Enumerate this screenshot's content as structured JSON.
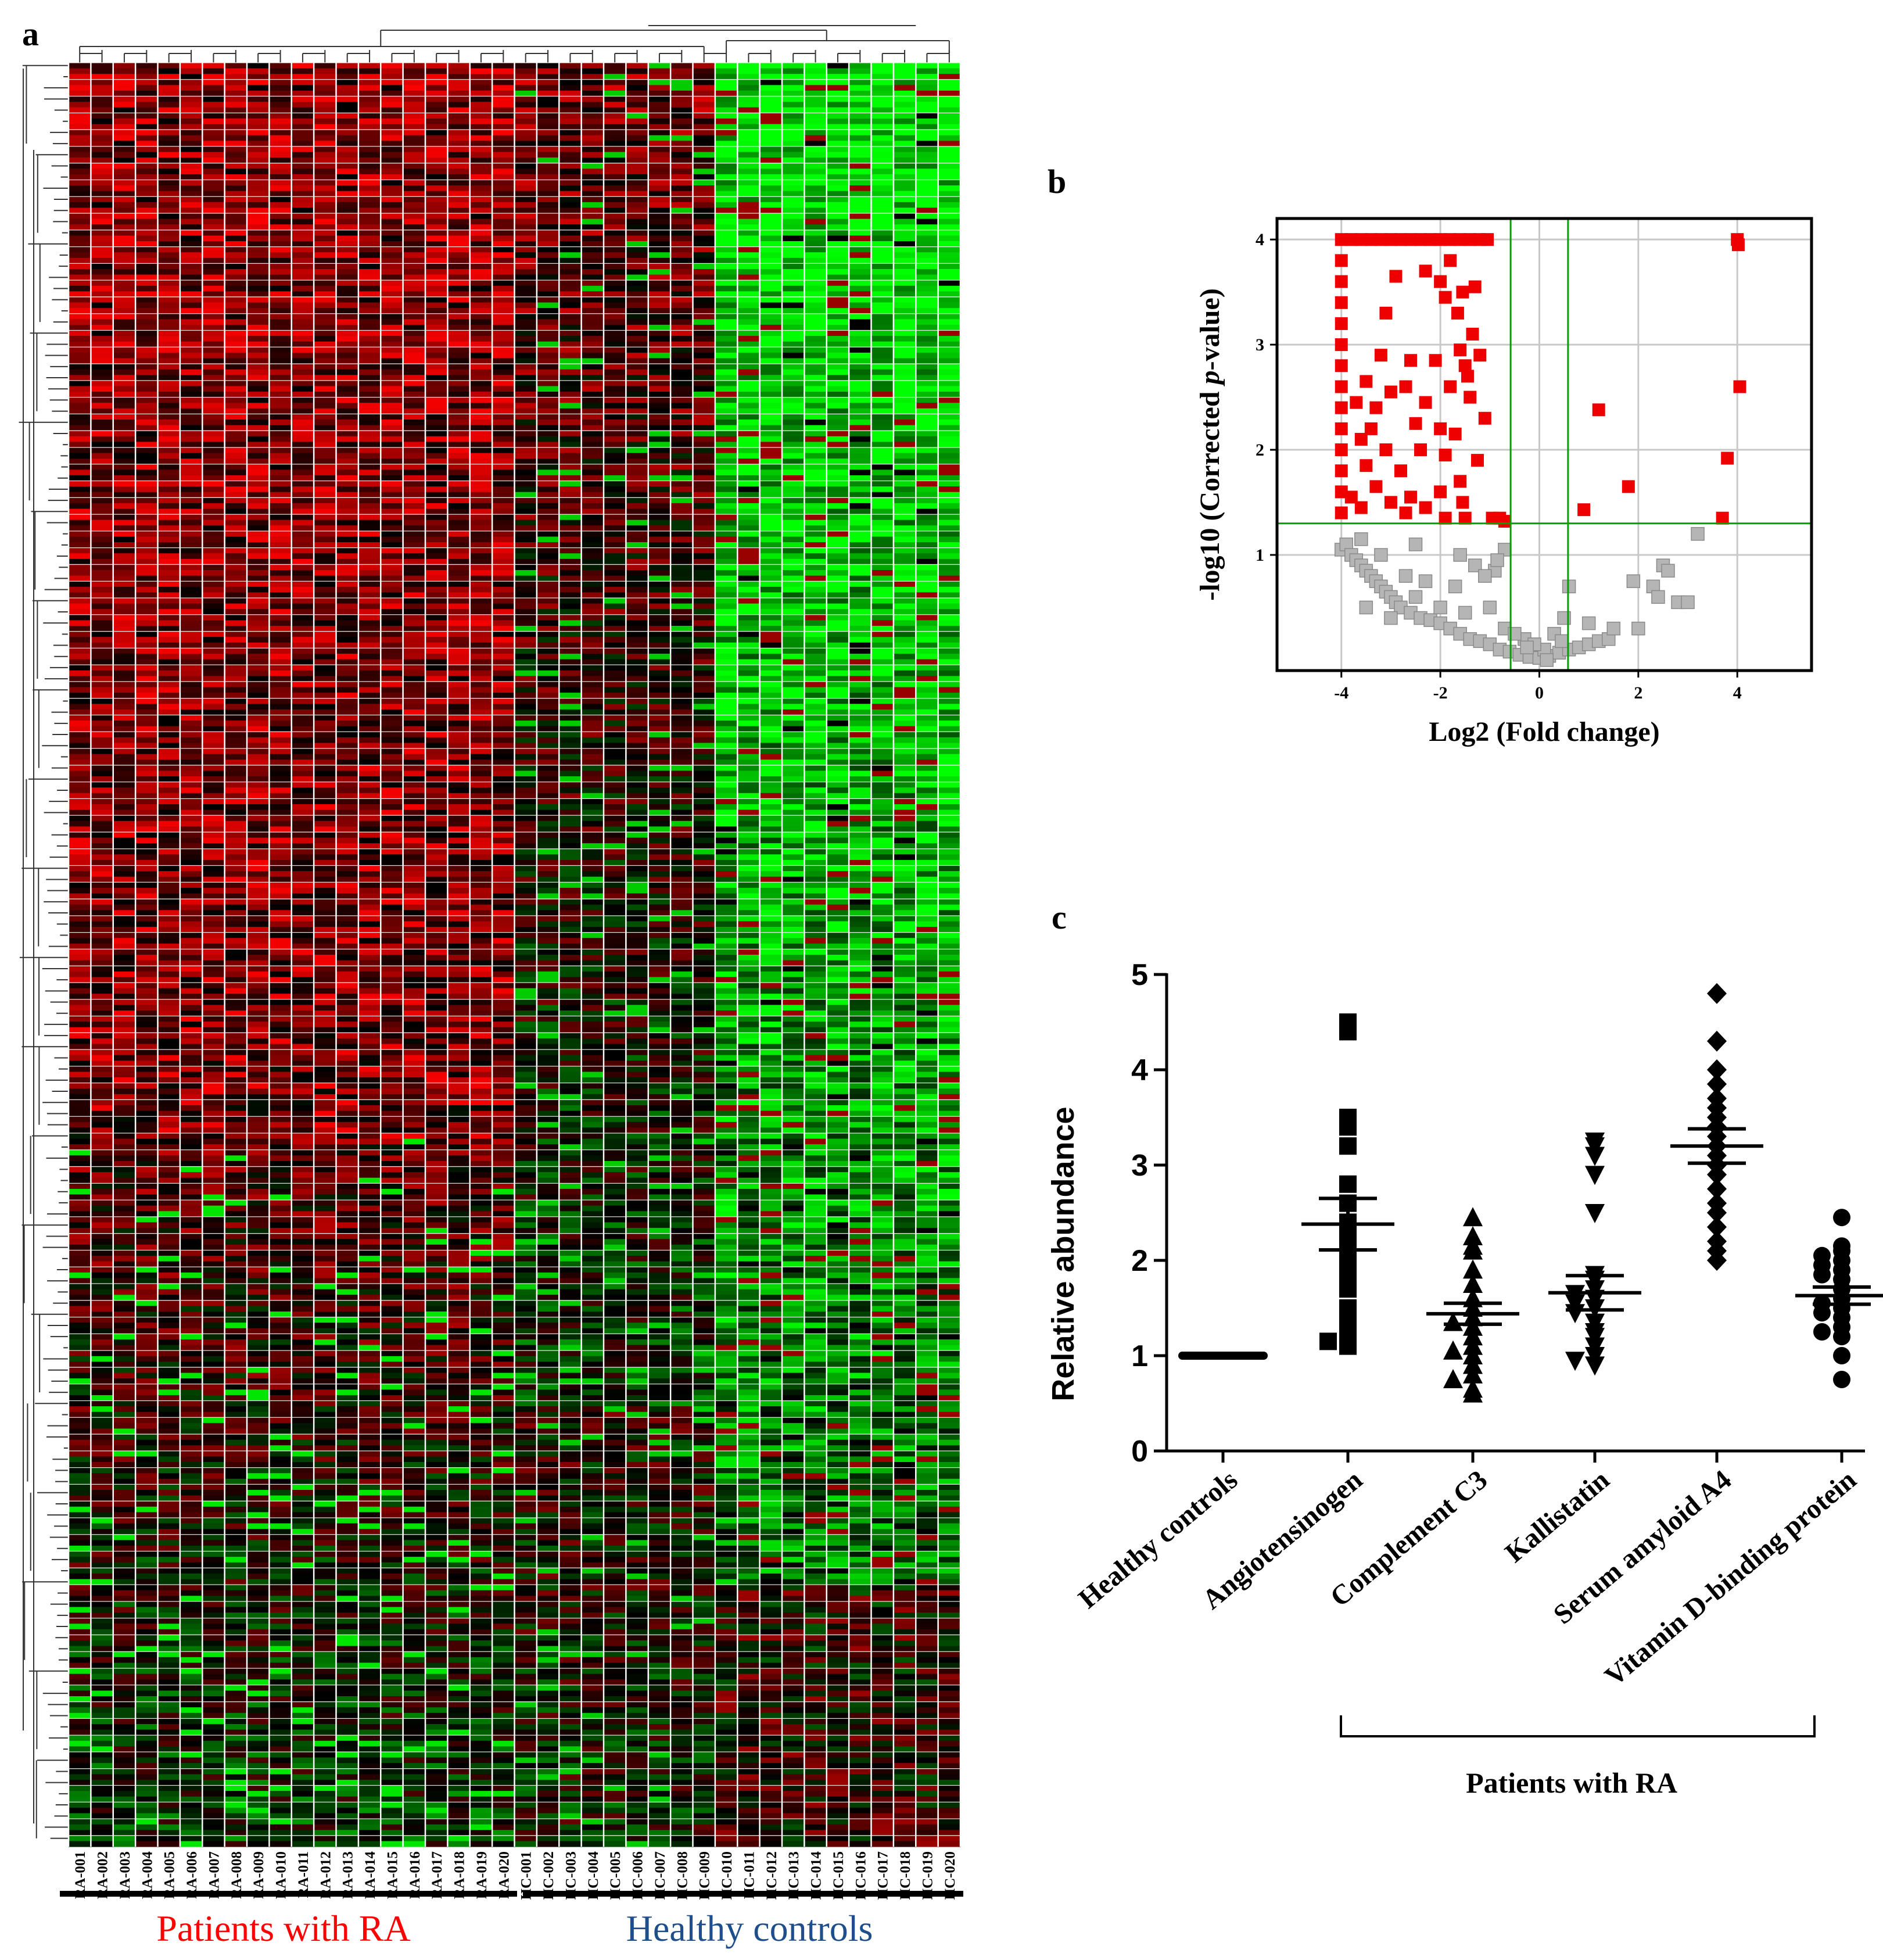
{
  "colors": {
    "up": "#ff0000",
    "down": "#00ff00",
    "mid": "#000000",
    "significant": "#ee0000",
    "not_significant": "#b5b5b5",
    "threshold_line": "#00a000",
    "ra_label": "#ff0000",
    "hc_label": "#1f4e8c"
  },
  "panel_a": {
    "letter": "a",
    "group_labels": {
      "ra": "Patients with RA",
      "hc": "Healthy controls"
    },
    "heatmap": {
      "type": "heatmap",
      "columns": [
        "RA-001",
        "RA-002",
        "RA-003",
        "RA-004",
        "RA-005",
        "RA-006",
        "RA-007",
        "RA-008",
        "RA-009",
        "RA-010",
        "RA-011",
        "RA-012",
        "RA-013",
        "RA-014",
        "RA-015",
        "RA-016",
        "RA-017",
        "RA-018",
        "RA-019",
        "RA-020",
        "HC-001",
        "HC-002",
        "HC-003",
        "HC-004",
        "HC-005",
        "HC-006",
        "HC-007",
        "HC-008",
        "HC-009",
        "HC-010",
        "HC-011",
        "HC-012",
        "HC-013",
        "HC-014",
        "HC-015",
        "HC-016",
        "HC-017",
        "HC-018",
        "HC-019",
        "HC-020"
      ],
      "row_count": 320,
      "color_scale": [
        "down (green)",
        "mid (black)",
        "up (red)"
      ],
      "pattern_note": "RA samples and HC-001–HC-009 predominantly red/dark red; HC-010–HC-020 predominantly green"
    }
  },
  "panel_b": {
    "letter": "b",
    "chart_data": {
      "type": "scatter",
      "title": "",
      "xlabel": "Log2 (Fold change)",
      "ylabel": "-log10 (Corrected p-value)",
      "xlim": [
        -5.3,
        5.5
      ],
      "ylim": [
        -0.1,
        4.2
      ],
      "xticks": [
        -4,
        -2,
        0,
        2,
        4
      ],
      "xtick_labels": [
        "-4",
        "-2",
        "0",
        "2",
        "4"
      ],
      "yticks": [
        1,
        2,
        3,
        4
      ],
      "ytick_labels": [
        "1",
        "2",
        "3",
        "4"
      ],
      "grid": true,
      "thresholds": {
        "x": [
          -0.58,
          0.58
        ],
        "y": 1.3
      },
      "series": [
        {
          "name": "significant",
          "points": [
            [
              -4,
              4.0
            ],
            [
              -3.8,
              4.0
            ],
            [
              -3.6,
              4.0
            ],
            [
              -3.4,
              4.0
            ],
            [
              -3.2,
              4.0
            ],
            [
              -3.0,
              4.0
            ],
            [
              -2.8,
              4.0
            ],
            [
              -2.6,
              4.0
            ],
            [
              -2.4,
              4.0
            ],
            [
              -2.2,
              4.0
            ],
            [
              -2.0,
              4.0
            ],
            [
              -1.8,
              4.0
            ],
            [
              -1.6,
              4.0
            ],
            [
              -1.4,
              4.0
            ],
            [
              -1.2,
              4.0
            ],
            [
              -1.05,
              4.0
            ],
            [
              -4,
              3.8
            ],
            [
              -4,
              3.6
            ],
            [
              -4,
              3.4
            ],
            [
              -4,
              3.2
            ],
            [
              -4,
              3.0
            ],
            [
              -4,
              2.8
            ],
            [
              -4,
              2.6
            ],
            [
              -4,
              2.4
            ],
            [
              -4,
              2.2
            ],
            [
              -4,
              2.0
            ],
            [
              -4,
              1.8
            ],
            [
              -4,
              1.6
            ],
            [
              -4,
              1.4
            ],
            [
              -2.9,
              3.65
            ],
            [
              -2.3,
              3.7
            ],
            [
              -1.8,
              3.8
            ],
            [
              -2.0,
              3.6
            ],
            [
              -1.3,
              3.55
            ],
            [
              -1.55,
              3.5
            ],
            [
              -1.9,
              3.45
            ],
            [
              -3.1,
              3.3
            ],
            [
              -1.65,
              3.3
            ],
            [
              -1.35,
              3.1
            ],
            [
              -1.6,
              2.95
            ],
            [
              -3.2,
              2.9
            ],
            [
              -2.1,
              2.85
            ],
            [
              -2.6,
              2.85
            ],
            [
              -1.5,
              2.8
            ],
            [
              -1.2,
              2.9
            ],
            [
              -1.45,
              2.7
            ],
            [
              -3.5,
              2.65
            ],
            [
              -2.7,
              2.6
            ],
            [
              -3.0,
              2.55
            ],
            [
              -1.8,
              2.6
            ],
            [
              -1.4,
              2.5
            ],
            [
              -2.3,
              2.45
            ],
            [
              -3.7,
              2.45
            ],
            [
              -3.3,
              2.4
            ],
            [
              -1.1,
              2.3
            ],
            [
              -2.5,
              2.25
            ],
            [
              -3.4,
              2.2
            ],
            [
              -1.7,
              2.15
            ],
            [
              -2.0,
              2.2
            ],
            [
              -3.6,
              2.1
            ],
            [
              -2.4,
              2.0
            ],
            [
              -1.9,
              1.95
            ],
            [
              -3.1,
              2.0
            ],
            [
              -1.25,
              1.9
            ],
            [
              -3.5,
              1.85
            ],
            [
              -2.8,
              1.8
            ],
            [
              -1.6,
              1.7
            ],
            [
              -3.3,
              1.65
            ],
            [
              -2.0,
              1.6
            ],
            [
              -3.8,
              1.55
            ],
            [
              -2.6,
              1.55
            ],
            [
              -1.55,
              1.5
            ],
            [
              -3.0,
              1.5
            ],
            [
              -2.3,
              1.45
            ],
            [
              -3.6,
              1.45
            ],
            [
              -1.9,
              1.35
            ],
            [
              -2.7,
              1.4
            ],
            [
              -1.5,
              1.35
            ],
            [
              -0.95,
              1.35
            ],
            [
              -0.8,
              1.35
            ],
            [
              -0.7,
              1.32
            ],
            [
              0.9,
              1.43
            ],
            [
              1.8,
              1.65
            ],
            [
              1.2,
              2.38
            ],
            [
              3.8,
              1.92
            ],
            [
              3.7,
              1.35
            ],
            [
              4.0,
              4.0
            ],
            [
              4.02,
              3.95
            ],
            [
              4.05,
              2.6
            ]
          ]
        },
        {
          "name": "not significant",
          "points": [
            [
              -4,
              1.05
            ],
            [
              -3.9,
              1.1
            ],
            [
              -3.8,
              1.0
            ],
            [
              -3.7,
              0.95
            ],
            [
              -3.6,
              0.9
            ],
            [
              -3.5,
              0.85
            ],
            [
              -3.4,
              0.8
            ],
            [
              -3.3,
              0.75
            ],
            [
              -3.2,
              0.7
            ],
            [
              -3.1,
              0.65
            ],
            [
              -3.0,
              0.6
            ],
            [
              -2.9,
              0.55
            ],
            [
              -2.8,
              0.5
            ],
            [
              -2.6,
              0.45
            ],
            [
              -2.4,
              0.4
            ],
            [
              -2.2,
              0.38
            ],
            [
              -2.0,
              0.35
            ],
            [
              -1.8,
              0.3
            ],
            [
              -1.6,
              0.25
            ],
            [
              -1.4,
              0.2
            ],
            [
              -1.2,
              0.18
            ],
            [
              -1.0,
              0.15
            ],
            [
              -0.8,
              0.1
            ],
            [
              -0.6,
              0.08
            ],
            [
              -0.4,
              0.05
            ],
            [
              -0.2,
              0.03
            ],
            [
              0.0,
              0.02
            ],
            [
              0.2,
              0.04
            ],
            [
              0.4,
              0.07
            ],
            [
              0.6,
              0.1
            ],
            [
              0.8,
              0.12
            ],
            [
              1.0,
              0.15
            ],
            [
              1.2,
              0.18
            ],
            [
              1.4,
              0.2
            ],
            [
              -3.5,
              0.5
            ],
            [
              -3.0,
              0.4
            ],
            [
              -2.5,
              0.6
            ],
            [
              -2.0,
              0.5
            ],
            [
              -1.5,
              0.45
            ],
            [
              -1.0,
              0.5
            ],
            [
              -0.7,
              0.3
            ],
            [
              -0.3,
              0.2
            ],
            [
              0.1,
              0.1
            ],
            [
              0.3,
              0.25
            ],
            [
              -0.5,
              0.25
            ],
            [
              -0.9,
              0.85
            ],
            [
              -1.3,
              0.9
            ],
            [
              -1.7,
              0.7
            ],
            [
              -2.3,
              0.75
            ],
            [
              -2.7,
              0.8
            ],
            [
              -3.2,
              1.0
            ],
            [
              -3.6,
              1.15
            ],
            [
              -0.7,
              1.05
            ],
            [
              -0.85,
              0.95
            ],
            [
              -1.1,
              0.8
            ],
            [
              -1.6,
              1.0
            ],
            [
              -2.5,
              1.1
            ],
            [
              0.5,
              0.4
            ],
            [
              0.6,
              0.7
            ],
            [
              1.0,
              0.35
            ],
            [
              1.5,
              0.3
            ],
            [
              1.9,
              0.75
            ],
            [
              2.3,
              0.7
            ],
            [
              2.5,
              0.9
            ],
            [
              2.6,
              0.85
            ],
            [
              2.8,
              0.55
            ],
            [
              3.0,
              0.55
            ],
            [
              3.2,
              1.2
            ],
            [
              2.4,
              0.6
            ],
            [
              2.0,
              0.3
            ],
            [
              -0.1,
              0.15
            ],
            [
              0.15,
              0.0
            ],
            [
              -0.25,
              0.12
            ],
            [
              0.45,
              0.18
            ]
          ]
        }
      ]
    }
  },
  "panel_c": {
    "letter": "c",
    "bracket_label": "Patients with RA",
    "chart_data": {
      "type": "scatter",
      "title": "",
      "xlabel": "",
      "ylabel": "Relative abundance",
      "ylim": [
        0,
        5
      ],
      "yticks": [
        0,
        1,
        2,
        3,
        4,
        5
      ],
      "ytick_labels": [
        "0",
        "1",
        "2",
        "3",
        "4",
        "5"
      ],
      "categories": [
        "Healthy controls",
        "Angiotensinogen",
        "Complement C3",
        "Kallistatin",
        "Serum amyloid A4",
        "Vitamin D-binding protein"
      ],
      "series": [
        {
          "name": "Healthy controls",
          "marker": "line",
          "mean": 1.0,
          "sem": 0.0,
          "values": [
            1,
            1,
            1,
            1,
            1,
            1,
            1,
            1,
            1,
            1,
            1,
            1,
            1,
            1,
            1,
            1,
            1,
            1,
            1,
            1
          ]
        },
        {
          "name": "Angiotensinogen",
          "marker": "square",
          "mean": 2.38,
          "sem": 0.27,
          "values": [
            4.5,
            4.4,
            3.5,
            3.4,
            3.2,
            2.8,
            2.6,
            2.4,
            2.3,
            2.2,
            2.0,
            1.9,
            1.8,
            1.7,
            1.5,
            1.4,
            1.3,
            1.2,
            1.15,
            1.1
          ]
        },
        {
          "name": "Complement C3",
          "marker": "triangle-up",
          "mean": 1.44,
          "sem": 0.11,
          "values": [
            2.45,
            2.25,
            2.15,
            2.1,
            1.9,
            1.75,
            1.6,
            1.5,
            1.4,
            1.35,
            1.3,
            1.2,
            1.1,
            1.05,
            1.0,
            0.9,
            0.8,
            0.75,
            0.65,
            0.6
          ]
        },
        {
          "name": "Kallistatin",
          "marker": "triangle-down",
          "mean": 1.66,
          "sem": 0.18,
          "values": [
            3.25,
            3.2,
            3.1,
            2.9,
            2.5,
            1.85,
            1.8,
            1.7,
            1.65,
            1.6,
            1.55,
            1.5,
            1.45,
            1.35,
            1.25,
            1.2,
            1.1,
            1.0,
            0.95,
            0.9
          ]
        },
        {
          "name": "Serum amyloid A4",
          "marker": "diamond",
          "mean": 3.2,
          "sem": 0.18,
          "values": [
            4.8,
            4.3,
            4.0,
            3.85,
            3.7,
            3.6,
            3.5,
            3.4,
            3.3,
            3.2,
            3.1,
            3.0,
            2.9,
            2.75,
            2.6,
            2.5,
            2.35,
            2.2,
            2.1,
            2.0
          ]
        },
        {
          "name": "Vitamin D-binding protein",
          "marker": "circle",
          "mean": 1.63,
          "sem": 0.09,
          "values": [
            2.45,
            2.15,
            2.1,
            2.05,
            2.0,
            1.95,
            1.9,
            1.85,
            1.8,
            1.7,
            1.6,
            1.55,
            1.5,
            1.45,
            1.4,
            1.3,
            1.25,
            1.2,
            1.0,
            0.75
          ]
        }
      ]
    }
  }
}
